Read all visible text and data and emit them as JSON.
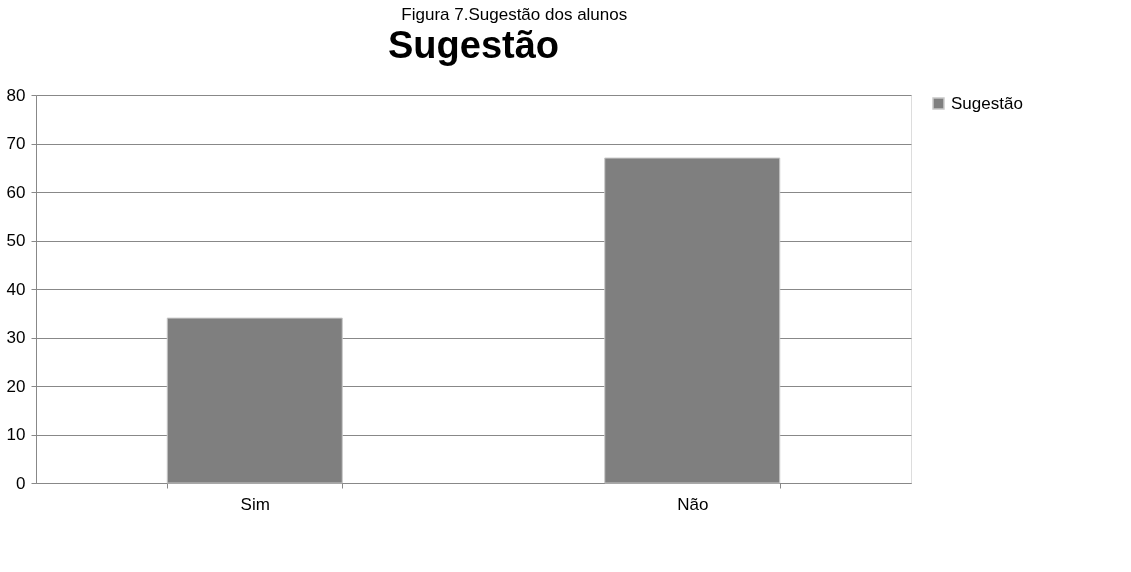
{
  "chart_data": {
    "type": "bar",
    "title": "Sugestão",
    "annotations": [
      "Figura 7.Sugestão dos alunos"
    ],
    "categories": [
      "Sim",
      "Não"
    ],
    "series": [
      {
        "name": "Sugestão",
        "color": "#7f7f7f",
        "values": [
          34,
          67
        ]
      }
    ],
    "ylim": [
      0,
      80
    ],
    "yticks": [
      0,
      10,
      20,
      30,
      40,
      50,
      60,
      70,
      80
    ],
    "grid": "y",
    "legend": "right"
  }
}
